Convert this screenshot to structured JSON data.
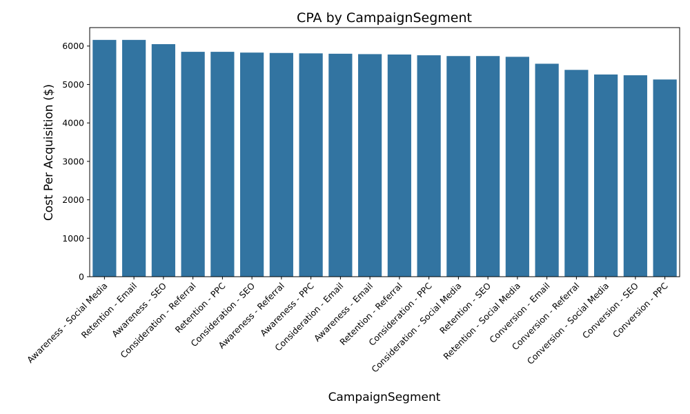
{
  "chart_data": {
    "type": "bar",
    "title": "CPA by CampaignSegment",
    "xlabel": "CampaignSegment",
    "ylabel": "Cost Per Acquisition ($)",
    "ylim": [
      0,
      6480
    ],
    "yticks": [
      0,
      1000,
      2000,
      3000,
      4000,
      5000,
      6000
    ],
    "bar_color": "#3274a1",
    "grid": false,
    "legend": "none",
    "categories": [
      "Awareness - Social Media",
      "Retention - Email",
      "Awareness - SEO",
      "Consideration - Referral",
      "Retention - PPC",
      "Consideration - SEO",
      "Awareness - Referral",
      "Awareness - PPC",
      "Consideration - Email",
      "Awareness - Email",
      "Retention - Referral",
      "Consideration - PPC",
      "Consideration - Social Media",
      "Retention - SEO",
      "Retention - Social Media",
      "Conversion - Email",
      "Conversion - Referral",
      "Conversion - Social Media",
      "Conversion - SEO",
      "Conversion - PPC"
    ],
    "values": [
      6160,
      6160,
      6050,
      5850,
      5850,
      5830,
      5820,
      5810,
      5800,
      5790,
      5780,
      5760,
      5740,
      5740,
      5720,
      5540,
      5380,
      5260,
      5240,
      5130
    ]
  }
}
